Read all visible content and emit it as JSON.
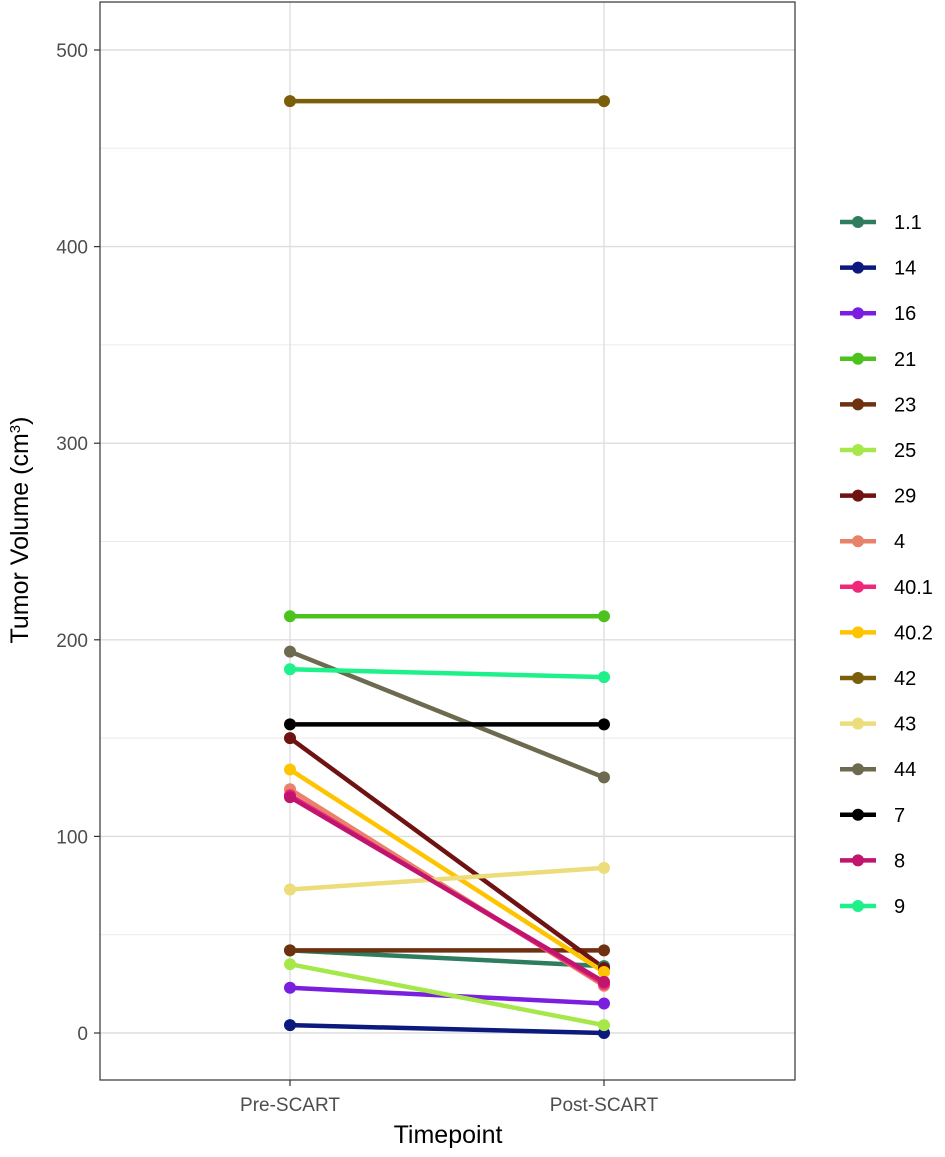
{
  "chart_data": {
    "type": "line",
    "title": "",
    "xlabel": "Timepoint",
    "ylabel": "Tumor Volume (cm",
    "ylabel_sup": "3",
    "ylabel_close": ")",
    "categories": [
      "Pre-SCART",
      "Post-SCART"
    ],
    "ylim": [
      -24,
      517
    ],
    "yticks": [
      0,
      100,
      200,
      300,
      400,
      500
    ],
    "yticks_minor": [
      50,
      150,
      250,
      350,
      450
    ],
    "grid": true,
    "legend_position": "right",
    "series": [
      {
        "name": "1.1",
        "color": "#2e7d5e",
        "values": [
          42,
          34
        ]
      },
      {
        "name": "14",
        "color": "#0b1a7c",
        "values": [
          4,
          0
        ]
      },
      {
        "name": "16",
        "color": "#7a1fe0",
        "values": [
          23,
          15
        ]
      },
      {
        "name": "21",
        "color": "#4cc21c",
        "values": [
          212,
          212
        ]
      },
      {
        "name": "23",
        "color": "#6e3210",
        "values": [
          42,
          42
        ]
      },
      {
        "name": "25",
        "color": "#a6e84a",
        "values": [
          35,
          4
        ]
      },
      {
        "name": "29",
        "color": "#6e1212",
        "values": [
          150,
          33
        ]
      },
      {
        "name": "4",
        "color": "#e8826a",
        "values": [
          124,
          24
        ]
      },
      {
        "name": "40.1",
        "color": "#f0287a",
        "values": [
          121,
          25
        ]
      },
      {
        "name": "40.2",
        "color": "#ffc400",
        "values": [
          134,
          31
        ]
      },
      {
        "name": "42",
        "color": "#7a5e0a",
        "values": [
          474,
          474
        ]
      },
      {
        "name": "43",
        "color": "#ecdc7a",
        "values": [
          73,
          84
        ]
      },
      {
        "name": "44",
        "color": "#6e6a50",
        "values": [
          194,
          130
        ]
      },
      {
        "name": "7",
        "color": "#000000",
        "values": [
          157,
          157
        ]
      },
      {
        "name": "8",
        "color": "#c0146e",
        "values": [
          120,
          26
        ]
      },
      {
        "name": "9",
        "color": "#1ef08a",
        "values": [
          185,
          181
        ]
      }
    ]
  }
}
